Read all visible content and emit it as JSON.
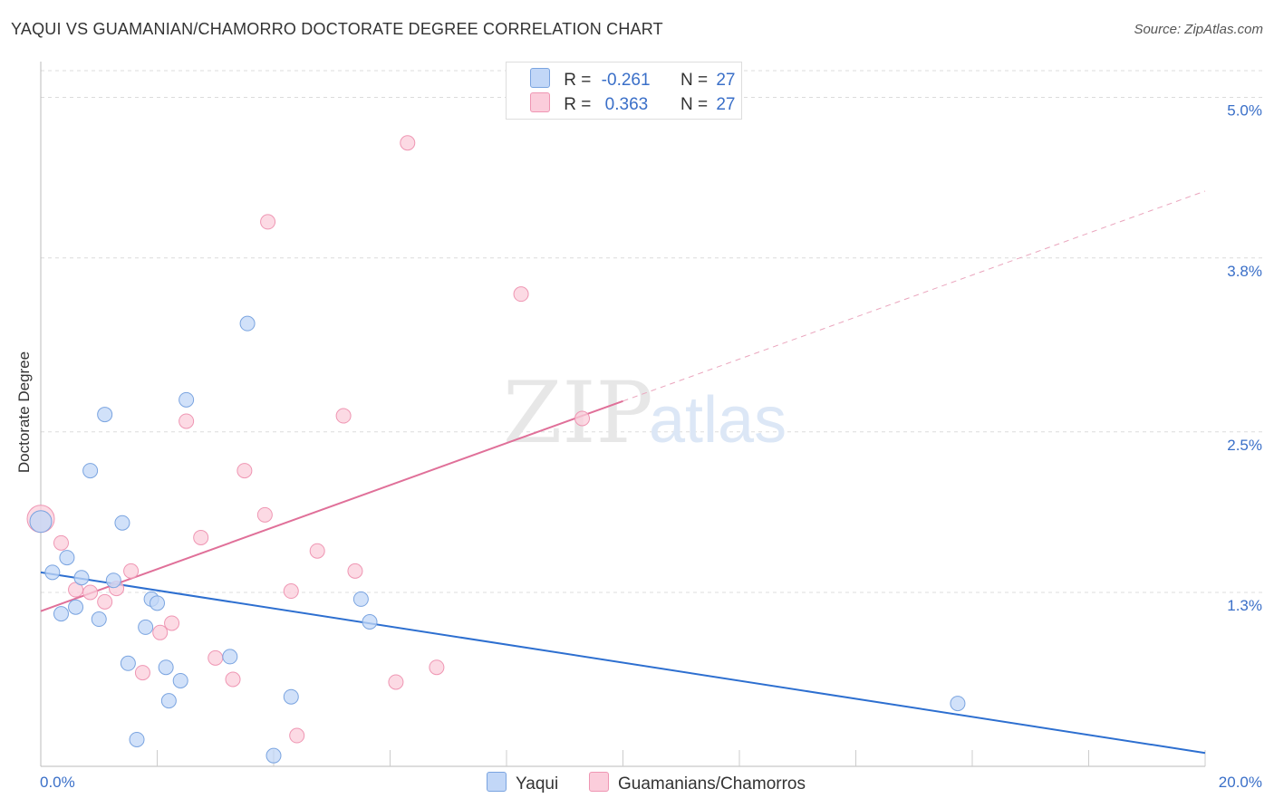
{
  "header": {
    "title": "YAQUI VS GUAMANIAN/CHAMORRO DOCTORATE DEGREE CORRELATION CHART",
    "source": "Source: ZipAtlas.com"
  },
  "watermark": {
    "zip": "ZIP",
    "atlas": "atlas"
  },
  "stats_legend": {
    "rows": [
      {
        "r_label": "R =",
        "r_value": "-0.261",
        "n_label": "N =",
        "n_value": "27",
        "color": "#c2d7f7"
      },
      {
        "r_label": "R =",
        "r_value": "0.363",
        "n_label": "N =",
        "n_value": "27",
        "color": "#fbcddb"
      }
    ]
  },
  "chart_data": {
    "type": "scatter",
    "title": "YAQUI VS GUAMANIAN/CHAMORRO DOCTORATE DEGREE CORRELATION CHART",
    "xlabel": "",
    "ylabel": "Doctorate Degree",
    "xlim": [
      0,
      20
    ],
    "ylim": [
      0,
      5.2
    ],
    "x_tick_labels": [
      "0.0%",
      "20.0%"
    ],
    "y_ticks": [
      1.3,
      2.5,
      3.8,
      5.0
    ],
    "y_tick_labels": [
      "1.3%",
      "2.5%",
      "3.8%",
      "5.0%"
    ],
    "grid": true,
    "legend_position": "bottom-center",
    "series": [
      {
        "name": "Yaqui",
        "color": "#7aa4e0",
        "fill": "#c2d7f7",
        "line_color": "#2d6fd0",
        "trend": {
          "x0": 0.0,
          "y0": 1.45,
          "x1": 20.0,
          "y1": 0.1
        },
        "points": [
          [
            0.0,
            1.83
          ],
          [
            0.2,
            1.45
          ],
          [
            0.35,
            1.14
          ],
          [
            0.45,
            1.56
          ],
          [
            0.6,
            1.19
          ],
          [
            0.7,
            1.41
          ],
          [
            0.85,
            2.21
          ],
          [
            1.0,
            1.1
          ],
          [
            1.1,
            2.63
          ],
          [
            1.25,
            1.39
          ],
          [
            1.4,
            1.82
          ],
          [
            1.5,
            0.77
          ],
          [
            1.65,
            0.2
          ],
          [
            1.8,
            1.04
          ],
          [
            1.9,
            1.25
          ],
          [
            2.0,
            1.22
          ],
          [
            2.15,
            0.74
          ],
          [
            2.2,
            0.49
          ],
          [
            2.4,
            0.64
          ],
          [
            2.5,
            2.74
          ],
          [
            3.25,
            0.82
          ],
          [
            3.55,
            3.31
          ],
          [
            4.0,
            0.08
          ],
          [
            4.3,
            0.52
          ],
          [
            5.5,
            1.25
          ],
          [
            5.65,
            1.08
          ],
          [
            15.75,
            0.47
          ]
        ]
      },
      {
        "name": "Guamanians/Chamorros",
        "color": "#ef96b3",
        "fill": "#fbcddb",
        "line_color": "#e07099",
        "trend": {
          "x0": 0.0,
          "y0": 1.16,
          "x1": 10.0,
          "y1": 2.73,
          "dashed_to": {
            "x": 20.0,
            "y": 4.3
          }
        },
        "points": [
          [
            0.0,
            1.85
          ],
          [
            0.35,
            1.67
          ],
          [
            0.6,
            1.32
          ],
          [
            0.85,
            1.3
          ],
          [
            1.1,
            1.23
          ],
          [
            1.3,
            1.33
          ],
          [
            1.55,
            1.46
          ],
          [
            1.75,
            0.7
          ],
          [
            2.05,
            1.0
          ],
          [
            2.25,
            1.07
          ],
          [
            2.5,
            2.58
          ],
          [
            2.75,
            1.71
          ],
          [
            3.0,
            0.81
          ],
          [
            3.3,
            0.65
          ],
          [
            3.5,
            2.21
          ],
          [
            3.85,
            1.88
          ],
          [
            3.9,
            4.07
          ],
          [
            4.3,
            1.31
          ],
          [
            4.4,
            0.23
          ],
          [
            4.75,
            1.61
          ],
          [
            5.2,
            2.62
          ],
          [
            5.4,
            1.46
          ],
          [
            6.1,
            0.63
          ],
          [
            6.3,
            4.66
          ],
          [
            6.8,
            0.74
          ],
          [
            8.25,
            3.53
          ],
          [
            9.3,
            2.6
          ]
        ]
      }
    ]
  },
  "bottom_legend": {
    "items": [
      "Yaqui",
      "Guamanians/Chamorros"
    ]
  }
}
